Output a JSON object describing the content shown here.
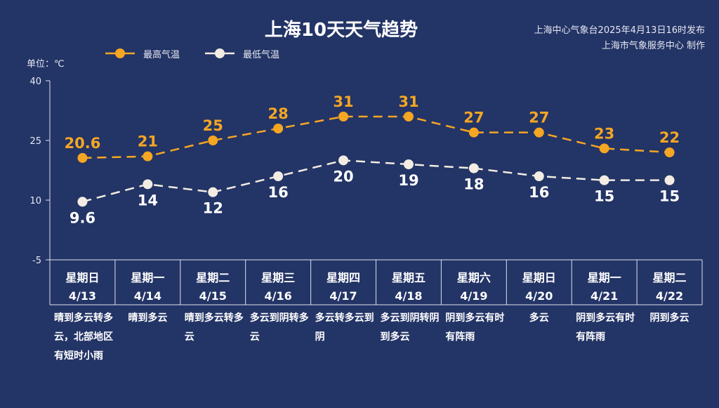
{
  "header": {
    "title": "上海10天天气趋势",
    "issuer_line1": "上海中心气象台2025年4月13日16时发布",
    "issuer_line2": "上海市气象服务中心 制作",
    "unit_label": "单位：℃"
  },
  "colors": {
    "background": "#233466",
    "high": "#f5a623",
    "low": "#f2ece2",
    "axis": "#dfe3ee"
  },
  "chart_data": {
    "type": "line",
    "title": "上海10天天气趋势",
    "ylabel": "单位：℃",
    "ylim": [
      -5,
      40
    ],
    "y_ticks": [
      "40",
      "25",
      "10",
      "-5"
    ],
    "categories": [
      "4/13",
      "4/14",
      "4/15",
      "4/16",
      "4/17",
      "4/18",
      "4/19",
      "4/20",
      "4/21",
      "4/22"
    ],
    "legend_position": "top-left",
    "grid": false,
    "series": [
      {
        "name": "最高气温",
        "values": [
          20.6,
          21,
          25,
          28,
          31,
          31,
          27,
          27,
          23,
          22
        ],
        "labels": [
          "20.6",
          "21",
          "25",
          "28",
          "31",
          "31",
          "27",
          "27",
          "23",
          "22"
        ],
        "color": "#f5a623",
        "line_style": "dashed"
      },
      {
        "name": "最低气温",
        "values": [
          9.6,
          14,
          12,
          16,
          20,
          19,
          18,
          16,
          15,
          15
        ],
        "labels": [
          "9.6",
          "14",
          "12",
          "16",
          "20",
          "19",
          "18",
          "16",
          "15",
          "15"
        ],
        "color": "#f2ece2",
        "line_style": "dashed"
      }
    ]
  },
  "days": [
    {
      "weekday": "星期日",
      "date": "4/13",
      "condition": "晴到多云转多云，北部地区有短时小雨"
    },
    {
      "weekday": "星期一",
      "date": "4/14",
      "condition": "晴到多云"
    },
    {
      "weekday": "星期二",
      "date": "4/15",
      "condition": "晴到多云转多云"
    },
    {
      "weekday": "星期三",
      "date": "4/16",
      "condition": "多云到阴转多云"
    },
    {
      "weekday": "星期四",
      "date": "4/17",
      "condition": "多云转多云到阴"
    },
    {
      "weekday": "星期五",
      "date": "4/18",
      "condition": "多云到阴转阴到多云"
    },
    {
      "weekday": "星期六",
      "date": "4/19",
      "condition": "阴到多云有时有阵雨"
    },
    {
      "weekday": "星期日",
      "date": "4/20",
      "condition": "多云"
    },
    {
      "weekday": "星期一",
      "date": "4/21",
      "condition": "阴到多云有时有阵雨"
    },
    {
      "weekday": "星期二",
      "date": "4/22",
      "condition": "阴到多云"
    }
  ]
}
